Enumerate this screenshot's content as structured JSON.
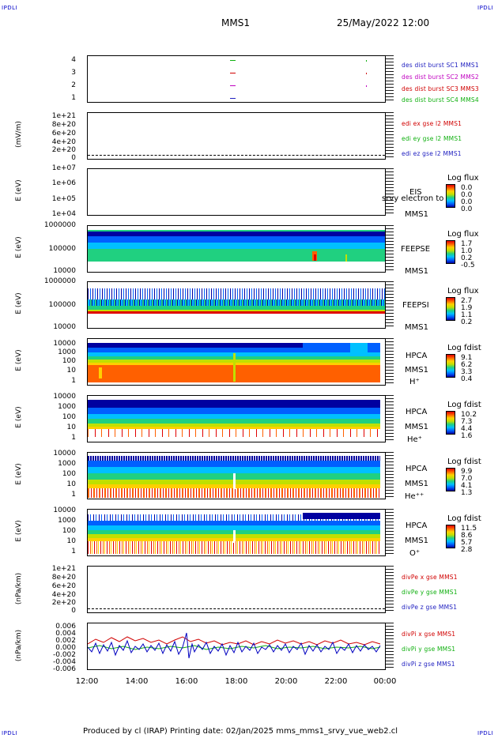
{
  "header": {
    "corner_label": "IPDLI",
    "title": "MMS1",
    "datetime": "25/May/2022 12:00"
  },
  "panels": [
    {
      "id": "orbits",
      "ylabel": "",
      "ticks": [
        "4",
        "3",
        "2",
        "1"
      ],
      "legend": [
        {
          "text": "des dist burst SC1 MMS1",
          "color": "#2020c0"
        },
        {
          "text": "des dist burst SC2 MMS2",
          "color": "#c000c0"
        },
        {
          "text": "des dist burst SC3 MMS3",
          "color": "#d00000"
        },
        {
          "text": "des dist burst SC4 MMS4",
          "color": "#10b010"
        }
      ]
    },
    {
      "id": "edi",
      "ylabel": "(mV/m)",
      "ticks": [
        "1e+21",
        "8e+20",
        "6e+20",
        "4e+20",
        "2e+20",
        "0"
      ],
      "legend": [
        {
          "text": "edi ex gse l2 MMS1",
          "color": "#d00000"
        },
        {
          "text": "edi ey gse l2 MMS1",
          "color": "#10b010"
        },
        {
          "text": "edi ez gse l2 MMS1",
          "color": "#2020c0"
        }
      ]
    },
    {
      "id": "eis",
      "ylabel": "E (eV)",
      "ticks": [
        "1e+07",
        "1e+06",
        "1e+05",
        "1e+04"
      ],
      "side": [
        "EIS",
        "MMS1"
      ],
      "overlay": "srvy electron to",
      "cb_title": "Log flux",
      "cb_vals": [
        "0.0",
        "0.0",
        "0.0",
        "0.0"
      ]
    },
    {
      "id": "feepse",
      "ylabel": "E (eV)",
      "ticks": [
        "1000000",
        "100000",
        "10000"
      ],
      "side": [
        "FEEPSE",
        "MMS1"
      ],
      "cb_title": "Log flux",
      "cb_vals": [
        "1.7",
        "1.0",
        "0.2",
        "-0.5"
      ]
    },
    {
      "id": "feepsi",
      "ylabel": "E (eV)",
      "ticks": [
        "1000000",
        "100000",
        "10000"
      ],
      "side": [
        "FEEPSI",
        "MMS1"
      ],
      "cb_title": "Log flux",
      "cb_vals": [
        "2.7",
        "1.9",
        "1.1",
        "0.2"
      ]
    },
    {
      "id": "hpca_h",
      "ylabel": "E (eV)",
      "ticks": [
        "10000",
        "1000",
        "100",
        "10",
        "1"
      ],
      "side": [
        "HPCA",
        "MMS1",
        "H⁺"
      ],
      "cb_title": "Log fdist",
      "cb_vals": [
        "9.1",
        "6.2",
        "3.3",
        "0.4"
      ]
    },
    {
      "id": "hpca_he",
      "ylabel": "E (eV)",
      "ticks": [
        "10000",
        "1000",
        "100",
        "10",
        "1"
      ],
      "side": [
        "HPCA",
        "MMS1",
        "He⁺"
      ],
      "cb_title": "Log fdist",
      "cb_vals": [
        "10.2",
        "7.3",
        "4.4",
        "1.6"
      ]
    },
    {
      "id": "hpca_hepp",
      "ylabel": "E (eV)",
      "ticks": [
        "10000",
        "1000",
        "100",
        "10",
        "1"
      ],
      "side": [
        "HPCA",
        "MMS1",
        "He⁺⁺"
      ],
      "cb_title": "Log fdist",
      "cb_vals": [
        "9.9",
        "7.0",
        "4.1",
        "1.3"
      ]
    },
    {
      "id": "hpca_o",
      "ylabel": "E (eV)",
      "ticks": [
        "10000",
        "1000",
        "100",
        "10",
        "1"
      ],
      "side": [
        "HPCA",
        "MMS1",
        "O⁺"
      ],
      "cb_title": "Log fdist",
      "cb_vals": [
        "11.5",
        "8.6",
        "5.7",
        "2.8"
      ]
    },
    {
      "id": "dvpe",
      "ylabel": "(nPa/km)",
      "ticks": [
        "1e+21",
        "8e+20",
        "6e+20",
        "4e+20",
        "2e+20",
        "0"
      ],
      "legend": [
        {
          "text": "divPe x gse MMS1",
          "color": "#d00000"
        },
        {
          "text": "divPe y gse MMS1",
          "color": "#10b010"
        },
        {
          "text": "divPe z gse MMS1",
          "color": "#2020c0"
        }
      ]
    },
    {
      "id": "dvpi",
      "ylabel": "(nPa/km)",
      "ticks": [
        "0.006",
        "0.004",
        "0.002",
        "0.000",
        "-0.002",
        "-0.004",
        "-0.006"
      ],
      "legend": [
        {
          "text": "divPi x gse MMS1",
          "color": "#d00000"
        },
        {
          "text": "divPi y gse MMS1",
          "color": "#10b010"
        },
        {
          "text": "divPi z gse MMS1",
          "color": "#2020c0"
        }
      ]
    }
  ],
  "xaxis": {
    "ticks": [
      "12:00",
      "14:00",
      "16:00",
      "18:00",
      "20:00",
      "22:00",
      "00:00"
    ]
  },
  "footer": {
    "text": "Produced by cl (IRAP)   Printing date: 02/Jan/2025   mms_mms1_srvy_vue_web2.cl"
  },
  "colors": {
    "spectrogram_scale": [
      "#0000a0",
      "#0060ff",
      "#00c0ff",
      "#20d080",
      "#c0e000",
      "#ffd000",
      "#ff6000",
      "#e00000"
    ]
  }
}
